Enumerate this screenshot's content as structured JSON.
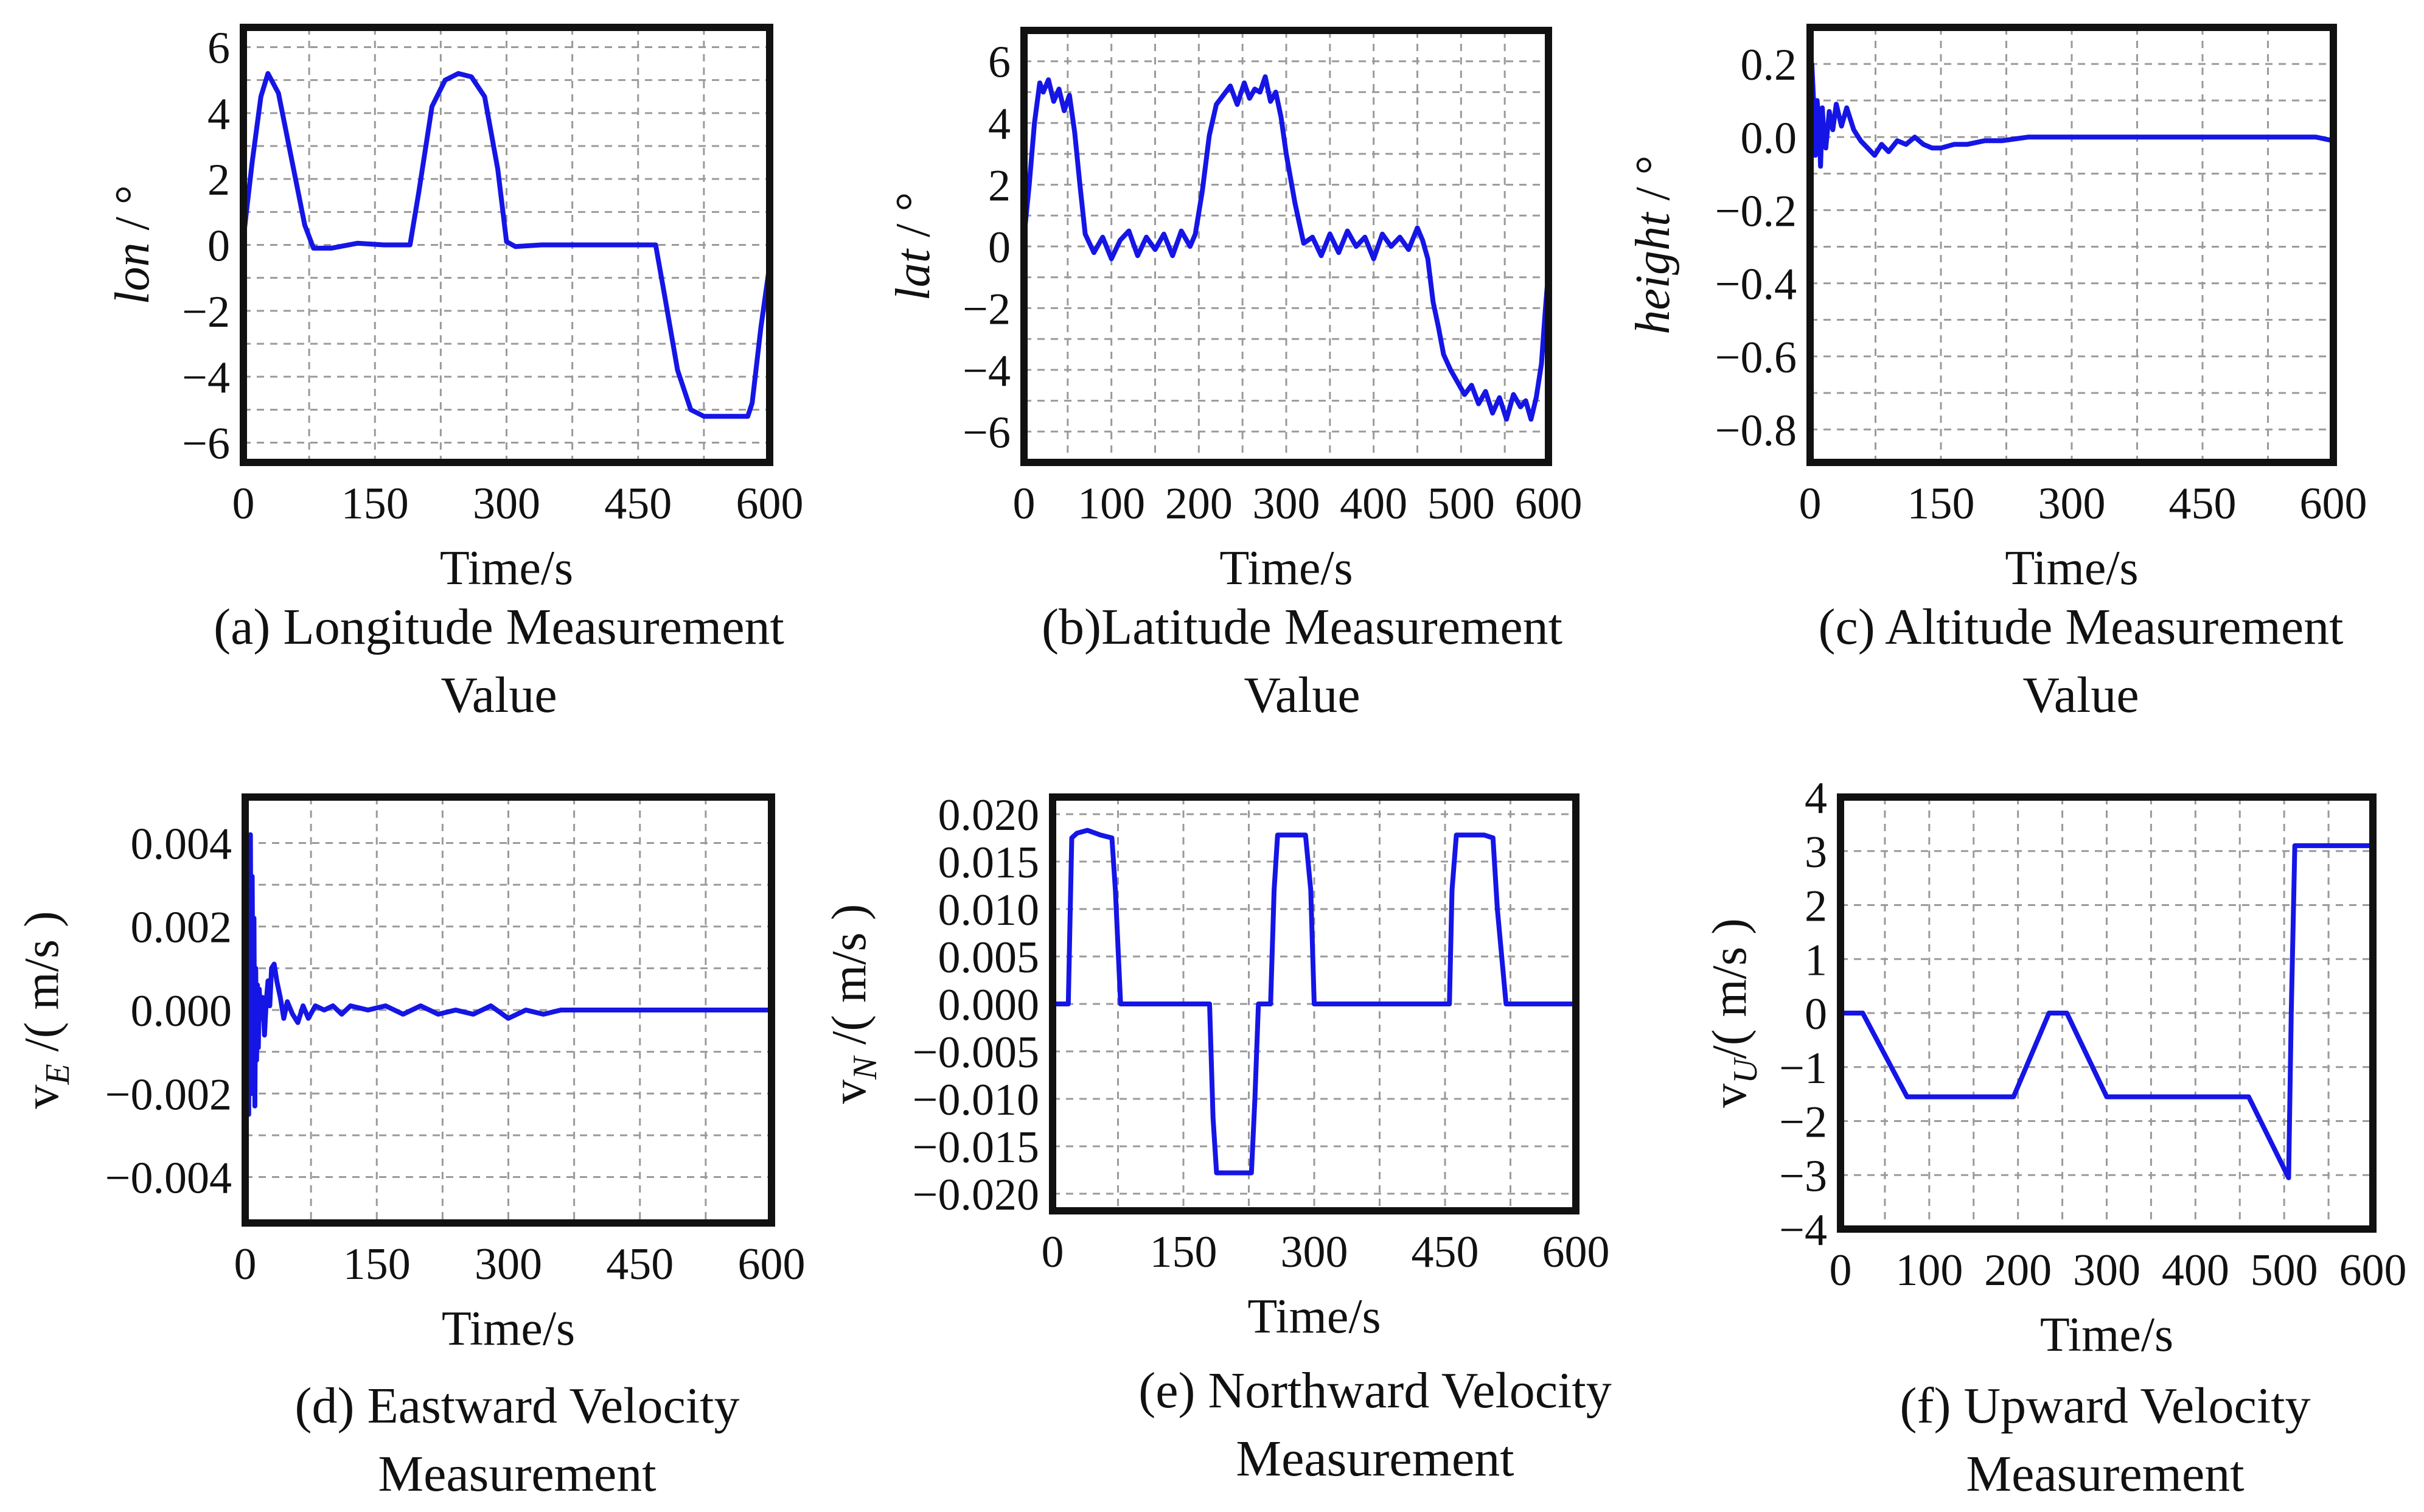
{
  "chart_data": [
    {
      "id": "a",
      "type": "line",
      "caption": [
        "(a) Longitude Measurement",
        "Value"
      ],
      "xlabel": "Time/s",
      "ylabel_main": "lon",
      "ylabel_unit": " / °",
      "ylabel_sub": "",
      "ylabel_italic": true,
      "xlim": [
        0,
        600
      ],
      "ylim": [
        -6.6,
        6.6
      ],
      "xticks": [
        0,
        150,
        300,
        450,
        600
      ],
      "xtick_labels": [
        "0",
        "150",
        "300",
        "450",
        "600"
      ],
      "yticks": [
        6,
        4,
        2,
        0,
        -2,
        -4,
        -6
      ],
      "ytick_labels": [
        "6",
        "4",
        "2",
        "0",
        "−2",
        "−4",
        "−6"
      ],
      "xgrid": [
        0,
        75,
        150,
        225,
        300,
        375,
        450,
        525,
        600
      ],
      "ygrid": [
        6,
        5,
        4,
        3,
        2,
        1,
        0,
        -1,
        -2,
        -3,
        -4,
        -5,
        -6
      ],
      "series": [
        {
          "x": [
            0,
            10,
            20,
            28,
            40,
            55,
            70,
            80,
            100,
            130,
            160,
            190,
            200,
            215,
            230,
            245,
            260,
            275,
            290,
            300,
            310,
            340,
            380,
            420,
            470,
            480,
            495,
            510,
            525,
            545,
            560,
            575,
            580,
            590,
            600
          ],
          "y": [
            0.2,
            2.5,
            4.5,
            5.2,
            4.6,
            2.6,
            0.6,
            -0.1,
            -0.1,
            0.05,
            0.0,
            0.0,
            1.6,
            4.2,
            5.0,
            5.2,
            5.1,
            4.5,
            2.3,
            0.1,
            -0.05,
            0.0,
            0.0,
            0.0,
            0.0,
            -1.5,
            -3.8,
            -5.0,
            -5.2,
            -5.2,
            -5.2,
            -5.2,
            -4.8,
            -2.5,
            -0.6
          ]
        }
      ]
    },
    {
      "id": "b",
      "type": "line",
      "caption": [
        "(b)Latitude Measurement",
        "Value"
      ],
      "xlabel": "Time/s",
      "ylabel_main": "lat",
      "ylabel_unit": " / °",
      "ylabel_sub": "",
      "ylabel_italic": true,
      "xlim": [
        0,
        600
      ],
      "ylim": [
        -7,
        7
      ],
      "xticks": [
        0,
        100,
        200,
        300,
        400,
        500,
        600
      ],
      "xtick_labels": [
        "0",
        "100",
        "200",
        "300",
        "400",
        "500",
        "600"
      ],
      "yticks": [
        6,
        4,
        2,
        0,
        -2,
        -4,
        -6
      ],
      "ytick_labels": [
        "6",
        "4",
        "2",
        "0",
        "−2",
        "−4",
        "−6"
      ],
      "xgrid": [
        0,
        50,
        100,
        150,
        200,
        250,
        300,
        350,
        400,
        450,
        500,
        550,
        600
      ],
      "ygrid": [
        6,
        5,
        4,
        3,
        2,
        1,
        0,
        -1,
        -2,
        -3,
        -4,
        -5,
        -6
      ],
      "series": [
        {
          "x": [
            0,
            6,
            12,
            18,
            22,
            28,
            34,
            40,
            46,
            52,
            58,
            64,
            70,
            80,
            90,
            100,
            110,
            120,
            130,
            140,
            150,
            160,
            170,
            180,
            190,
            196,
            204,
            212,
            220,
            228,
            236,
            244,
            252,
            258,
            264,
            270,
            276,
            282,
            288,
            294,
            300,
            310,
            320,
            330,
            340,
            350,
            360,
            370,
            380,
            390,
            400,
            410,
            420,
            430,
            440,
            450,
            456,
            462,
            468,
            474,
            480,
            488,
            496,
            504,
            512,
            520,
            528,
            536,
            544,
            552,
            560,
            568,
            574,
            580,
            586,
            592,
            596,
            600
          ],
          "y": [
            0.3,
            2.0,
            4.0,
            5.3,
            5.0,
            5.4,
            4.7,
            5.1,
            4.4,
            4.9,
            3.7,
            2.0,
            0.4,
            -0.2,
            0.3,
            -0.4,
            0.2,
            0.5,
            -0.3,
            0.3,
            -0.1,
            0.4,
            -0.3,
            0.5,
            0.0,
            0.4,
            1.8,
            3.6,
            4.6,
            4.9,
            5.2,
            4.6,
            5.3,
            4.8,
            5.1,
            5.0,
            5.5,
            4.7,
            5.0,
            4.2,
            3.0,
            1.4,
            0.1,
            0.3,
            -0.3,
            0.4,
            -0.2,
            0.5,
            0.0,
            0.3,
            -0.4,
            0.4,
            0.0,
            0.3,
            -0.1,
            0.6,
            0.2,
            -0.4,
            -1.8,
            -2.6,
            -3.5,
            -4.0,
            -4.4,
            -4.8,
            -4.5,
            -5.1,
            -4.7,
            -5.4,
            -4.9,
            -5.6,
            -4.8,
            -5.2,
            -5.0,
            -5.6,
            -4.9,
            -3.8,
            -2.2,
            -0.8
          ]
        }
      ]
    },
    {
      "id": "c",
      "type": "line",
      "caption": [
        "(c) Altitude Measurement",
        "Value"
      ],
      "xlabel": "Time/s",
      "ylabel_main": "height",
      "ylabel_unit": " / °",
      "ylabel_sub": "",
      "ylabel_italic": true,
      "xlim": [
        0,
        600
      ],
      "ylim": [
        -0.89,
        0.3
      ],
      "xticks": [
        0,
        150,
        300,
        450,
        600
      ],
      "xtick_labels": [
        "0",
        "150",
        "300",
        "450",
        "600"
      ],
      "yticks": [
        0.2,
        0.0,
        -0.2,
        -0.4,
        -0.6,
        -0.8
      ],
      "ytick_labels": [
        "0.2",
        "0.0",
        "−0.2",
        "−0.4",
        "−0.6",
        "−0.8"
      ],
      "xgrid": [
        0,
        75,
        150,
        225,
        300,
        375,
        450,
        525,
        600
      ],
      "ygrid": [
        0.2,
        0.1,
        0.0,
        -0.1,
        -0.2,
        -0.3,
        -0.4,
        -0.5,
        -0.6,
        -0.7,
        -0.8
      ],
      "series": [
        {
          "x": [
            0,
            2,
            4,
            6,
            8,
            10,
            12,
            14,
            16,
            18,
            22,
            26,
            30,
            36,
            42,
            50,
            58,
            66,
            74,
            82,
            90,
            100,
            110,
            120,
            130,
            140,
            150,
            165,
            180,
            200,
            220,
            250,
            280,
            300,
            320,
            350,
            400,
            450,
            500,
            550,
            580,
            600
          ],
          "y": [
            0.0,
            0.2,
            0.1,
            -0.05,
            0.1,
            0.05,
            -0.08,
            0.08,
            0.0,
            -0.03,
            0.07,
            0.02,
            0.09,
            0.03,
            0.08,
            0.02,
            -0.01,
            -0.03,
            -0.05,
            -0.02,
            -0.04,
            -0.01,
            -0.02,
            0.0,
            -0.02,
            -0.03,
            -0.03,
            -0.02,
            -0.02,
            -0.01,
            -0.01,
            0.0,
            0.0,
            0.0,
            0.0,
            0.0,
            0.0,
            0.0,
            0.0,
            0.0,
            0.0,
            -0.01
          ]
        }
      ]
    },
    {
      "id": "d",
      "type": "line",
      "caption": [
        "(d) Eastward Velocity",
        "Measurement"
      ],
      "xlabel": "Time/s",
      "ylabel_main": "v",
      "ylabel_unit": " /( m/s )",
      "ylabel_sub": "E",
      "ylabel_italic": false,
      "xlim": [
        0,
        600
      ],
      "ylim": [
        -0.0051,
        0.0051
      ],
      "xticks": [
        0,
        150,
        300,
        450,
        600
      ],
      "xtick_labels": [
        "0",
        "150",
        "300",
        "450",
        "600"
      ],
      "yticks": [
        0.004,
        0.002,
        0.0,
        -0.002,
        -0.004
      ],
      "ytick_labels": [
        "0.004",
        "0.002",
        "0.000",
        "−0.002",
        "−0.004"
      ],
      "xgrid": [
        0,
        75,
        150,
        225,
        300,
        375,
        450,
        525,
        600
      ],
      "ygrid": [
        0.004,
        0.003,
        0.002,
        0.001,
        0.0,
        -0.001,
        -0.002,
        -0.003,
        -0.004
      ],
      "series": [
        {
          "x": [
            0,
            1,
            2,
            3,
            4,
            5,
            6,
            7,
            8,
            9,
            10,
            11,
            12,
            13,
            14,
            15,
            16,
            18,
            20,
            22,
            24,
            26,
            28,
            30,
            33,
            36,
            40,
            44,
            48,
            54,
            60,
            66,
            72,
            80,
            90,
            100,
            110,
            120,
            140,
            160,
            180,
            200,
            220,
            240,
            260,
            280,
            300,
            320,
            340,
            360,
            400,
            450,
            500,
            550,
            600
          ],
          "y": [
            0.0,
            -0.0042,
            0.0,
            0.0035,
            -0.0025,
            0.004,
            0.0042,
            -0.002,
            0.0032,
            -0.001,
            0.0022,
            -0.0023,
            0.001,
            -0.0012,
            0.0006,
            -0.0009,
            0.0005,
            -0.0002,
            0.0003,
            -0.0006,
            0.0002,
            0.0007,
            0.0001,
            0.001,
            0.0011,
            0.0007,
            0.0003,
            -0.0002,
            0.0002,
            -0.0001,
            -0.0003,
            0.0001,
            -0.0002,
            0.0001,
            0.0,
            0.0001,
            -0.0001,
            0.0001,
            0.0,
            0.0001,
            -0.0001,
            0.0001,
            -0.0001,
            0.0,
            -0.0001,
            0.0001,
            -0.0002,
            0.0,
            -0.0001,
            0.0,
            0.0,
            0.0,
            0.0,
            0.0,
            0.0
          ]
        }
      ]
    },
    {
      "id": "e",
      "type": "line",
      "caption": [
        "(e) Northward Velocity",
        "Measurement"
      ],
      "xlabel": "Time/s",
      "ylabel_main": "v",
      "ylabel_unit": " /( m/s )",
      "ylabel_sub": "N",
      "ylabel_italic": false,
      "xlim": [
        0,
        600
      ],
      "ylim": [
        -0.0218,
        0.0218
      ],
      "xticks": [
        0,
        150,
        300,
        450,
        600
      ],
      "xtick_labels": [
        "0",
        "150",
        "300",
        "450",
        "600"
      ],
      "yticks": [
        0.02,
        0.015,
        0.01,
        0.005,
        0.0,
        -0.005,
        -0.01,
        -0.015,
        -0.02
      ],
      "ytick_labels": [
        "0.020",
        "0.015",
        "0.010",
        "0.005",
        "0.000",
        "−0.005",
        "−0.010",
        "−0.015",
        "−0.020"
      ],
      "xgrid": [
        0,
        75,
        150,
        225,
        300,
        375,
        450,
        525,
        600
      ],
      "ygrid": [
        0.02,
        0.015,
        0.01,
        0.005,
        0.0,
        -0.005,
        -0.01,
        -0.015,
        -0.02
      ],
      "series": [
        {
          "x": [
            0,
            18,
            22,
            28,
            40,
            55,
            68,
            72,
            78,
            100,
            150,
            180,
            184,
            188,
            200,
            215,
            228,
            232,
            236,
            250,
            254,
            258,
            275,
            290,
            296,
            300,
            305,
            350,
            400,
            455,
            458,
            463,
            480,
            495,
            505,
            510,
            520,
            560,
            600
          ],
          "y": [
            0.0,
            0.0,
            0.0175,
            0.018,
            0.0183,
            0.0178,
            0.0175,
            0.012,
            0.0,
            0.0,
            0.0,
            0.0,
            -0.012,
            -0.0178,
            -0.0178,
            -0.0178,
            -0.0178,
            -0.01,
            0.0,
            0.0,
            0.012,
            0.0178,
            0.0178,
            0.0178,
            0.012,
            0.0,
            0.0,
            0.0,
            0.0,
            0.0,
            0.012,
            0.0178,
            0.0178,
            0.0178,
            0.0175,
            0.01,
            0.0,
            0.0,
            0.0
          ]
        }
      ]
    },
    {
      "id": "f",
      "type": "line",
      "caption": [
        "(f) Upward Velocity",
        "Measurement"
      ],
      "xlabel": "Time/s",
      "ylabel_main": "v",
      "ylabel_unit": "/( m/s )",
      "ylabel_sub": "U",
      "ylabel_italic": false,
      "xlim": [
        0,
        600
      ],
      "ylim": [
        -4,
        4
      ],
      "xticks": [
        0,
        100,
        200,
        300,
        400,
        500,
        600
      ],
      "xtick_labels": [
        "0",
        "100",
        "200",
        "300",
        "400",
        "500",
        "600"
      ],
      "yticks": [
        4,
        3,
        2,
        1,
        0,
        -1,
        -2,
        -3,
        -4
      ],
      "ytick_labels": [
        "4",
        "3",
        "2",
        "1",
        "0",
        "−1",
        "−2",
        "−3",
        "−4"
      ],
      "xgrid": [
        0,
        50,
        100,
        150,
        200,
        250,
        300,
        350,
        400,
        450,
        500,
        550,
        600
      ],
      "ygrid": [
        4,
        3,
        2,
        1,
        0,
        -1,
        -2,
        -3,
        -4
      ],
      "series": [
        {
          "x": [
            0,
            10,
            25,
            75,
            100,
            150,
            195,
            235,
            255,
            300,
            350,
            400,
            460,
            505,
            508,
            512,
            550,
            600
          ],
          "y": [
            0.0,
            0.0,
            0.0,
            -1.55,
            -1.55,
            -1.55,
            -1.55,
            0.0,
            0.0,
            -1.55,
            -1.55,
            -1.55,
            -1.55,
            -3.05,
            0.0,
            3.1,
            3.1,
            3.1
          ]
        }
      ]
    }
  ]
}
